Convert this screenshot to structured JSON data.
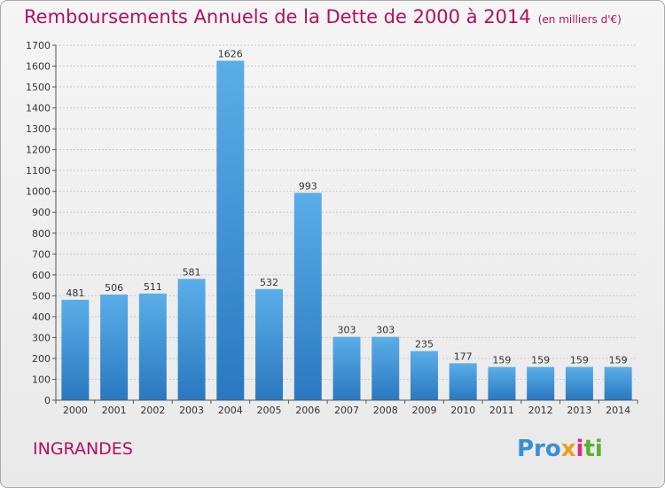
{
  "title": "Remboursements Annuels de la Dette de 2000 à 2014",
  "unit": "(en milliers d'€)",
  "commune": "INGRANDES",
  "logo": "Proxiti",
  "colors": {
    "bar": "#3a8fd6",
    "title": "#b01060"
  },
  "chart_data": {
    "type": "bar",
    "title": "Remboursements Annuels de la Dette de 2000 à 2014",
    "xlabel": "",
    "ylabel": "",
    "ylim": [
      0,
      1700
    ],
    "yticks": [
      0,
      100,
      200,
      300,
      400,
      500,
      600,
      700,
      800,
      900,
      1000,
      1100,
      1200,
      1300,
      1400,
      1500,
      1600,
      1700
    ],
    "grid": true,
    "categories": [
      "2000",
      "2001",
      "2002",
      "2003",
      "2004",
      "2005",
      "2006",
      "2007",
      "2008",
      "2009",
      "2010",
      "2011",
      "2012",
      "2013",
      "2014"
    ],
    "values": [
      481,
      506,
      511,
      581,
      1626,
      532,
      993,
      303,
      303,
      235,
      177,
      159,
      159,
      159,
      159
    ]
  }
}
